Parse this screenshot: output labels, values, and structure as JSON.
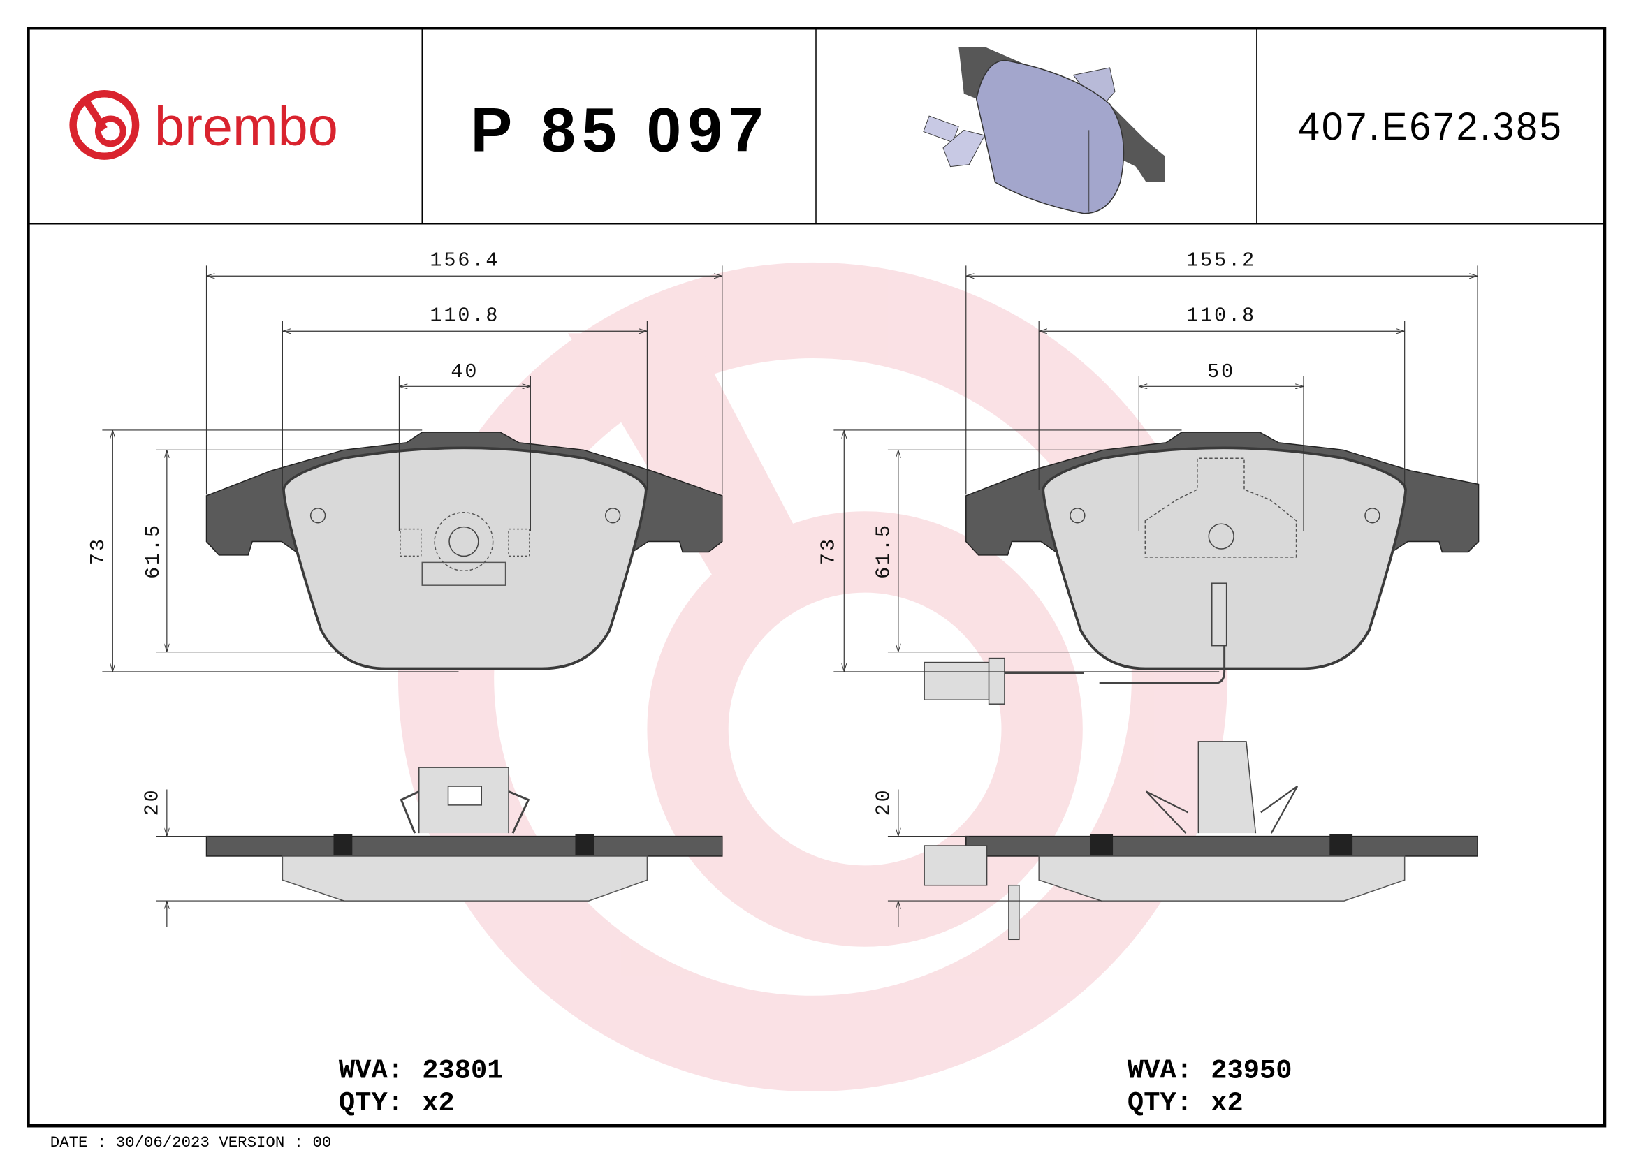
{
  "header": {
    "brand": "brembo",
    "part_number": "P 85 097",
    "reference_code": "407.E672.385"
  },
  "colors": {
    "brand_red": "#d9232e",
    "watermark": "#f6c9cf",
    "backing_plate": "#5a5a5a",
    "friction": "#d9d9d9",
    "render_pad": "#a3a6cc"
  },
  "left_pad": {
    "dims": {
      "overall_width": "156.4",
      "inner_width": "110.8",
      "center_width": "40",
      "height": "73",
      "friction_height": "61.5",
      "thickness": "20"
    },
    "wva_label": "WVA:",
    "wva": "23801",
    "qty_label": "QTY:",
    "qty": "x2"
  },
  "right_pad": {
    "dims": {
      "overall_width": "155.2",
      "inner_width": "110.8",
      "center_width": "50",
      "height": "73",
      "friction_height": "61.5",
      "thickness": "20"
    },
    "wva_label": "WVA:",
    "wva": "23950",
    "qty_label": "QTY:",
    "qty": "x2"
  },
  "footer": {
    "text": "DATE : 30/06/2023 VERSION : 00"
  }
}
